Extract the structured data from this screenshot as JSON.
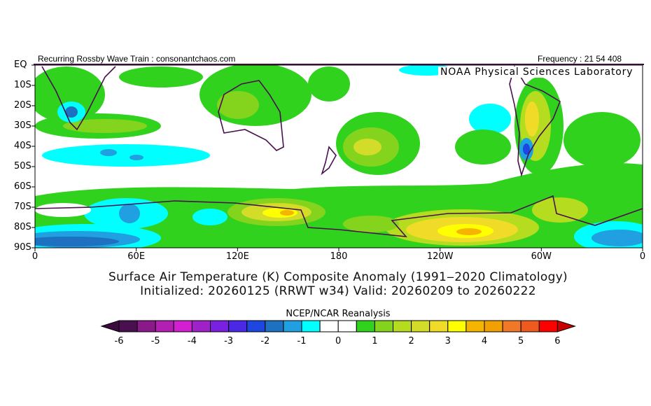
{
  "header": {
    "left": "Recurring Rossby Wave Train : consonantchaos.com",
    "right": "Frequency : 21 54 408"
  },
  "credit": "NOAA Physical Sciences Laboratory",
  "chart_data": {
    "type": "heatmap",
    "title": "Surface Air Temperature (K) Composite Anomaly (1991‒2020 Climatology)",
    "subtitle": "Initialized: 20260125 (RRWT w34) Valid: 20260209 to 20260222",
    "colorbar_title": "NCEP/NCAR Reanalysis",
    "y_ticks": [
      "EQ",
      "10S",
      "20S",
      "30S",
      "40S",
      "50S",
      "60S",
      "70S",
      "80S",
      "90S"
    ],
    "x_ticks": [
      "0",
      "60E",
      "120E",
      "180",
      "120W",
      "60W",
      "0"
    ],
    "lat_range": [
      0,
      -90
    ],
    "lon_range": [
      0,
      360
    ],
    "colorbar_levels": [
      -6,
      -5.5,
      -5,
      -4.5,
      -4,
      -3.5,
      -3,
      -2.5,
      -2,
      -1.5,
      -1,
      -0.5,
      0,
      0.5,
      1,
      1.5,
      2,
      2.5,
      3,
      3.5,
      4,
      4.5,
      5,
      5.5,
      6
    ],
    "colorbar_tick_labels": [
      "-6",
      "-5",
      "-4",
      "-3",
      "-2",
      "-1",
      "0",
      "1",
      "2",
      "3",
      "4",
      "5",
      "6"
    ],
    "colorbar_colors": [
      "#4a0f4e",
      "#8a1a8a",
      "#b21fb2",
      "#d21fd2",
      "#9e22c8",
      "#7a20e0",
      "#4a28e6",
      "#1e46e0",
      "#1e70c0",
      "#20a0e0",
      "#00ffff",
      "#ffffff",
      "#ffffff",
      "#30d21e",
      "#84d41e",
      "#b6dc20",
      "#d4dc2a",
      "#f0dc28",
      "#ffff00",
      "#f5b400",
      "#f0a000",
      "#f07828",
      "#f05a1e",
      "#ff0000"
    ],
    "extend_colors": {
      "low": "#3c0a3c",
      "high": "#c80000"
    }
  }
}
